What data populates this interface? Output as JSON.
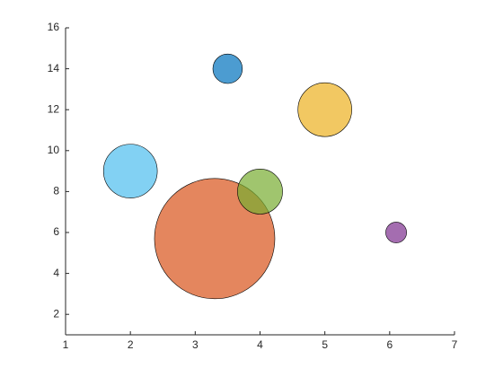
{
  "chart_data": {
    "type": "bubble",
    "x": [
      3.5,
      3.3,
      5,
      6.1,
      4,
      2
    ],
    "values": [
      14,
      5.7,
      12,
      6,
      8,
      9
    ],
    "sizes": [
      6,
      100,
      20,
      3,
      14,
      20
    ],
    "colors": [
      "#0072BD",
      "#D95319",
      "#EDB120",
      "#7E2F8E",
      "#77AC30",
      "#4DBEEE"
    ],
    "xlim": [
      1,
      7
    ],
    "xticks": [
      1,
      2,
      3,
      4,
      5,
      6,
      7
    ],
    "ylim": [
      1,
      16
    ],
    "yticks": [
      2,
      4,
      6,
      8,
      10,
      12,
      14,
      16
    ]
  }
}
